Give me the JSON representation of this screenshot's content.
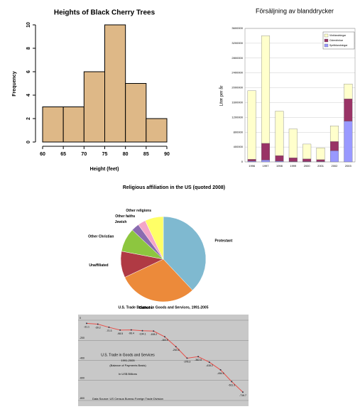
{
  "chart_data": [
    {
      "type": "histogram",
      "title": "Heights of Black Cherry Trees",
      "xlabel": "Height (feet)",
      "ylabel": "Frequency",
      "bins": [
        60,
        65,
        70,
        75,
        80,
        85,
        90
      ],
      "values": [
        3,
        3,
        6,
        10,
        5,
        2
      ],
      "color": "#deb887",
      "xlim": [
        60,
        90
      ],
      "xticks": [
        60,
        65,
        70,
        75,
        80,
        85,
        90
      ],
      "ylim": [
        0,
        10
      ],
      "yticks": [
        0,
        2,
        4,
        6,
        8,
        10
      ]
    },
    {
      "type": "stacked_bar",
      "title": "Försäljning av blanddrycker",
      "ylabel": "Liter per år",
      "categories": [
        "1996",
        "1997",
        "1998",
        "1999",
        "2000",
        "2001",
        "2002",
        "2003"
      ],
      "series": [
        {
          "name": "Spritblandningar",
          "color": "#9999ff",
          "values": [
            20000,
            50000,
            20000,
            10000,
            10000,
            10000,
            300000,
            1100000
          ]
        },
        {
          "name": "Ciderdrinkar",
          "color": "#993366",
          "values": [
            50000,
            450000,
            150000,
            100000,
            70000,
            50000,
            250000,
            600000
          ]
        },
        {
          "name": "Vinblandningar",
          "color": "#ffffcc",
          "values": [
            1850000,
            2900000,
            1200000,
            780000,
            400000,
            320000,
            420000,
            400000
          ]
        }
      ],
      "ylim": [
        0,
        3600000
      ],
      "yticks": [
        0,
        400000,
        800000,
        1200000,
        1600000,
        2000000,
        2400000,
        2800000,
        3200000,
        3600000
      ],
      "grid": true,
      "legend": "top-right"
    },
    {
      "type": "pie",
      "title": "Religious affiliation in the US (quoted 2008)",
      "categories": [
        "Protestant",
        "Catholic",
        "Unaffiliated",
        "Other Christian",
        "Jewish",
        "Other faiths",
        "Other religions"
      ],
      "values": [
        38,
        30,
        10,
        9,
        3,
        3,
        7
      ],
      "colors": [
        "#7fb9d0",
        "#ec8a3a",
        "#b03a44",
        "#8dc63f",
        "#8a6bb0",
        "#f4a6c8",
        "#ffff66"
      ]
    },
    {
      "type": "line",
      "title": "U.S. Trade Balance in Goods and Services, 1991-2005",
      "annotations": [
        "U.S. Trade in Goods and Services",
        "1991-2005",
        "(Balance of Payments Basis)",
        "In US$ Billions",
        "Data Source: US Census Bureau Foreign Trade Division"
      ],
      "values": [
        -31.1,
        -39.2,
        -70.3,
        -98.5,
        -96.4,
        -104.1,
        -108.2,
        -164.9,
        -263.8,
        -378.3,
        -362.8,
        -418.2,
        -494.9,
        -611.3,
        -716.7
      ],
      "color": "#e8504a",
      "ylim": [
        -800,
        0
      ],
      "yticks": [
        -800,
        -600,
        -400,
        -200,
        0
      ],
      "grid": true
    }
  ]
}
